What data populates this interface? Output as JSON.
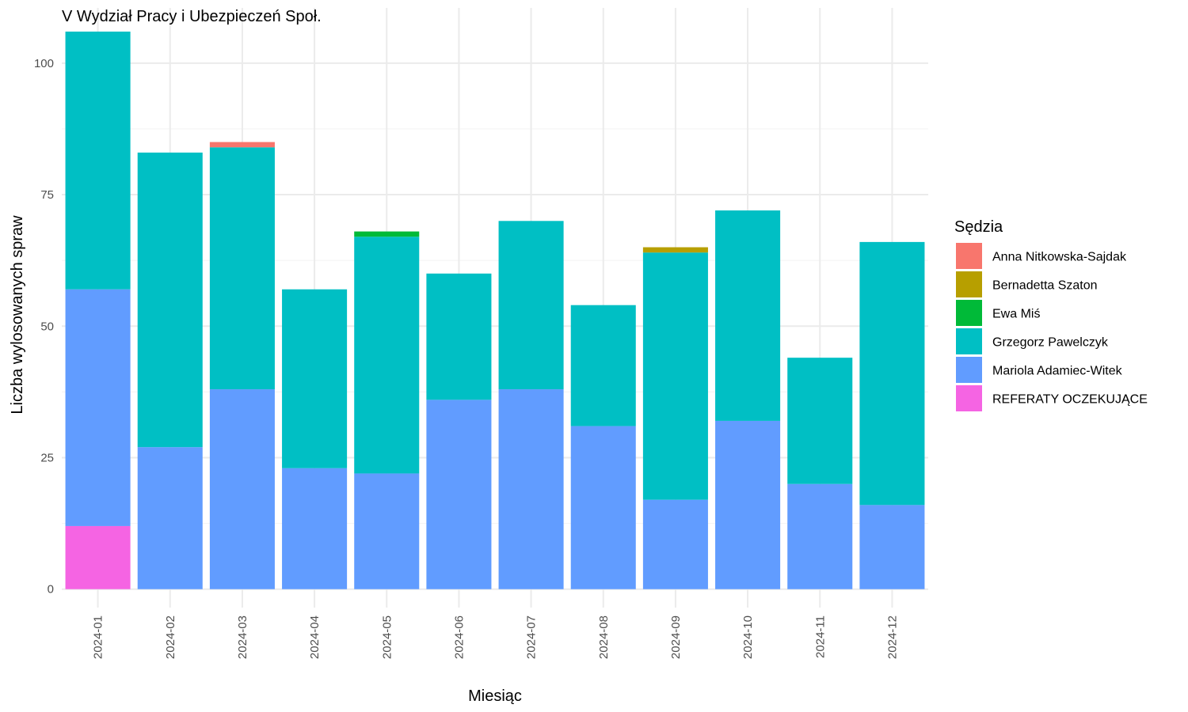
{
  "chart_data": {
    "type": "bar",
    "stacked": true,
    "title": "V Wydział Pracy i Ubezpieczeń Społ.",
    "xlabel": "Miesiąc",
    "ylabel": "Liczba wylosowanych spraw",
    "ylim": [
      0,
      106
    ],
    "yticks": [
      0,
      25,
      50,
      75,
      100
    ],
    "grid": true,
    "legend_title": "Sędzia",
    "legend_position": "right",
    "categories": [
      "2024-01",
      "2024-02",
      "2024-03",
      "2024-04",
      "2024-05",
      "2024-06",
      "2024-07",
      "2024-08",
      "2024-09",
      "2024-10",
      "2024-11",
      "2024-12"
    ],
    "series": [
      {
        "name": "Anna Nitkowska-Sajdak",
        "color": "#F8766D",
        "values": [
          0,
          0,
          1,
          0,
          0,
          0,
          0,
          0,
          0,
          0,
          0,
          0
        ]
      },
      {
        "name": "Bernadetta Szaton",
        "color": "#B79F00",
        "values": [
          0,
          0,
          0,
          0,
          0,
          0,
          0,
          0,
          1,
          0,
          0,
          0
        ]
      },
      {
        "name": "Ewa Miś",
        "color": "#00BA38",
        "values": [
          0,
          0,
          0,
          0,
          1,
          0,
          0,
          0,
          0,
          0,
          0,
          0
        ]
      },
      {
        "name": "Grzegorz Pawelczyk",
        "color": "#00BFC4",
        "values": [
          49,
          56,
          46,
          34,
          45,
          24,
          32,
          23,
          47,
          40,
          24,
          50
        ]
      },
      {
        "name": "Mariola Adamiec-Witek",
        "color": "#619CFF",
        "values": [
          45,
          27,
          38,
          23,
          22,
          36,
          38,
          31,
          17,
          32,
          20,
          16
        ]
      },
      {
        "name": "REFERATY OCZEKUJĄCE",
        "color": "#F564E3",
        "values": [
          12,
          0,
          0,
          0,
          0,
          0,
          0,
          0,
          0,
          0,
          0,
          0
        ]
      }
    ]
  }
}
